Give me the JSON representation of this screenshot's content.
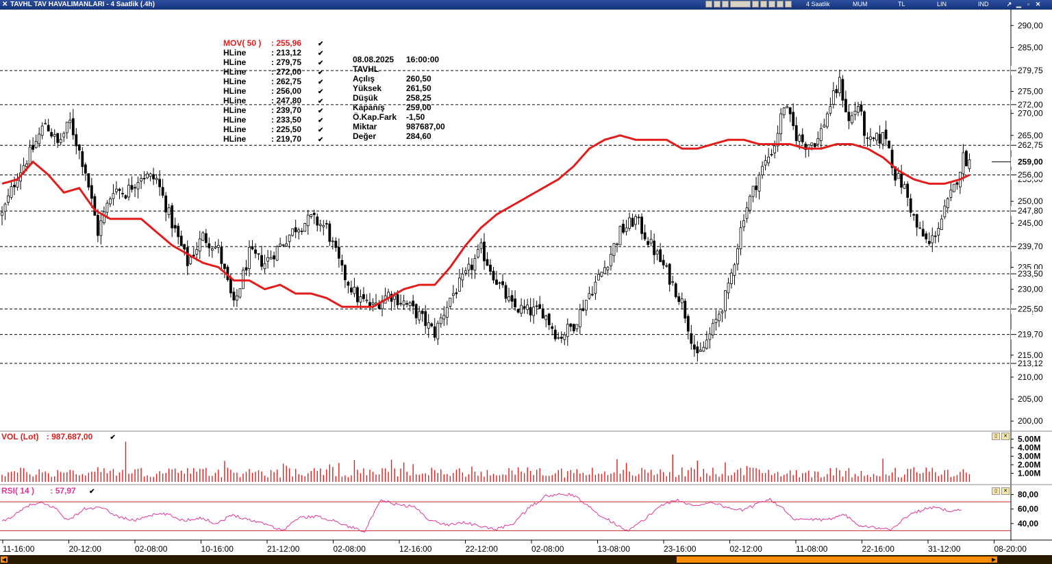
{
  "window": {
    "title": "TAVHL TAV HAVALIMANLARI - 4 Saatlik (.4h)",
    "toolbar_labels": [
      "4 Saatlik",
      "MUM",
      "TL",
      "LIN",
      "IND"
    ]
  },
  "legend": {
    "mov_label": "MOV( 50 )",
    "mov_value": ": 255,96",
    "hlines": [
      {
        "label": "HLine",
        "value": ": 213,12"
      },
      {
        "label": "HLine",
        "value": ": 279,75"
      },
      {
        "label": "HLine",
        "value": ": 272,00"
      },
      {
        "label": "HLine",
        "value": ": 262,75"
      },
      {
        "label": "HLine",
        "value": ": 256,00"
      },
      {
        "label": "HLine",
        "value": ": 247,80"
      },
      {
        "label": "HLine",
        "value": ": 239,70"
      },
      {
        "label": "HLine",
        "value": ": 233,50"
      },
      {
        "label": "HLine",
        "value": ": 225,50"
      },
      {
        "label": "HLine",
        "value": ": 219,70"
      }
    ]
  },
  "info": {
    "date": "08.08.2025",
    "time": "16:00:00",
    "symbol": "TAVHL",
    "rows": [
      {
        "k": "Açılış",
        "v": "260,50"
      },
      {
        "k": "Yüksek",
        "v": "261,50"
      },
      {
        "k": "Düşük",
        "v": "258,25"
      },
      {
        "k": "Kapanış",
        "v": "259,00"
      },
      {
        "k": "Ö.Kap.Fark",
        "v": "-1,50"
      },
      {
        "k": "Miktar",
        "v": "987687,00"
      },
      {
        "k": "Değer",
        "v": "284,60"
      }
    ]
  },
  "volume_panel": {
    "label": "VOL (Lot)",
    "value": ": 987.687,00"
  },
  "rsi_panel": {
    "label": "RSI( 14 )",
    "value": ": 57,97"
  },
  "colors": {
    "ma": "#e31b1b",
    "rsi": "#e0359a",
    "vol": "#e31b1b",
    "title_bg": "#1f3f8f",
    "scroll": "#ff8c00"
  },
  "chart_data": {
    "type": "candlestick",
    "price_axis": {
      "ylim": [
        198,
        293
      ],
      "ticks": [
        "200,00",
        "205,00",
        "210,00",
        "215,00",
        "225,00",
        "230,00",
        "235,00",
        "245,00",
        "250,00",
        "255,00",
        "265,00",
        "270,00",
        "275,00",
        "285,00",
        "290,00"
      ],
      "tick_values": [
        200,
        205,
        210,
        215,
        225,
        230,
        235,
        245,
        250,
        255,
        265,
        270,
        275,
        285,
        290
      ]
    },
    "hlines": [
      {
        "value": 279.75,
        "label": "279,75"
      },
      {
        "value": 272.0,
        "label": "272,00"
      },
      {
        "value": 262.75,
        "label": "262,75"
      },
      {
        "value": 256.0,
        "label": "256,00"
      },
      {
        "value": 247.8,
        "label": "247,80"
      },
      {
        "value": 239.7,
        "label": "239,70"
      },
      {
        "value": 233.5,
        "label": "233,50"
      },
      {
        "value": 225.5,
        "label": "225,50"
      },
      {
        "value": 219.7,
        "label": "219,70"
      },
      {
        "value": 213.12,
        "label": "213,12"
      }
    ],
    "last_price": {
      "value": 259.0,
      "label": "259,00"
    },
    "x_labels": [
      "11-16:00",
      "20-12:00",
      "02-08:00",
      "10-16:00",
      "21-12:00",
      "02-08:00",
      "12-16:00",
      "22-12:00",
      "02-08:00",
      "13-08:00",
      "23-16:00",
      "02-12:00",
      "11-08:00",
      "22-16:00",
      "31-12:00",
      "08-20:00"
    ],
    "close_path": [
      [
        0,
        247
      ],
      [
        5,
        256
      ],
      [
        10,
        262
      ],
      [
        14,
        268
      ],
      [
        18,
        263
      ],
      [
        22,
        268
      ],
      [
        27,
        257
      ],
      [
        31,
        243
      ],
      [
        36,
        253
      ],
      [
        40,
        252
      ],
      [
        45,
        256
      ],
      [
        50,
        255
      ],
      [
        55,
        245
      ],
      [
        60,
        236
      ],
      [
        65,
        242
      ],
      [
        70,
        239
      ],
      [
        75,
        226
      ],
      [
        80,
        238
      ],
      [
        85,
        236
      ],
      [
        90,
        240
      ],
      [
        95,
        244
      ],
      [
        100,
        246
      ],
      [
        105,
        244
      ],
      [
        110,
        234
      ],
      [
        115,
        228
      ],
      [
        120,
        226
      ],
      [
        125,
        229
      ],
      [
        130,
        227
      ],
      [
        135,
        224
      ],
      [
        140,
        220
      ],
      [
        145,
        228
      ],
      [
        150,
        233
      ],
      [
        155,
        239
      ],
      [
        160,
        232
      ],
      [
        165,
        226
      ],
      [
        170,
        225
      ],
      [
        175,
        225
      ],
      [
        180,
        219
      ],
      [
        185,
        222
      ],
      [
        190,
        229
      ],
      [
        195,
        235
      ],
      [
        200,
        243
      ],
      [
        205,
        246
      ],
      [
        210,
        240
      ],
      [
        215,
        234
      ],
      [
        220,
        227
      ],
      [
        225,
        214
      ],
      [
        230,
        221
      ],
      [
        235,
        230
      ],
      [
        240,
        247
      ],
      [
        245,
        256
      ],
      [
        250,
        263
      ],
      [
        253,
        272
      ],
      [
        257,
        265
      ],
      [
        260,
        263
      ],
      [
        264,
        264
      ],
      [
        268,
        272
      ],
      [
        271,
        277
      ],
      [
        274,
        268
      ],
      [
        277,
        272
      ],
      [
        280,
        263
      ],
      [
        283,
        264
      ],
      [
        286,
        265
      ],
      [
        289,
        256
      ],
      [
        292,
        253
      ],
      [
        296,
        244
      ],
      [
        300,
        240
      ],
      [
        304,
        246
      ],
      [
        308,
        253
      ],
      [
        311,
        260
      ],
      [
        313,
        259
      ]
    ],
    "ma_path": [
      [
        0,
        254
      ],
      [
        5,
        255
      ],
      [
        10,
        259
      ],
      [
        15,
        256
      ],
      [
        20,
        252
      ],
      [
        25,
        253
      ],
      [
        30,
        248
      ],
      [
        35,
        246
      ],
      [
        40,
        246
      ],
      [
        45,
        246
      ],
      [
        50,
        243
      ],
      [
        55,
        240
      ],
      [
        60,
        238
      ],
      [
        65,
        236
      ],
      [
        70,
        235
      ],
      [
        75,
        232
      ],
      [
        80,
        232
      ],
      [
        85,
        230
      ],
      [
        90,
        231
      ],
      [
        95,
        229
      ],
      [
        100,
        229
      ],
      [
        105,
        228
      ],
      [
        110,
        226
      ],
      [
        115,
        226
      ],
      [
        120,
        226
      ],
      [
        125,
        228
      ],
      [
        130,
        230
      ],
      [
        135,
        231
      ],
      [
        140,
        231
      ],
      [
        145,
        235
      ],
      [
        150,
        240
      ],
      [
        155,
        244
      ],
      [
        160,
        247
      ],
      [
        165,
        249
      ],
      [
        170,
        251
      ],
      [
        175,
        253
      ],
      [
        180,
        255
      ],
      [
        185,
        258
      ],
      [
        190,
        262
      ],
      [
        195,
        264
      ],
      [
        200,
        265
      ],
      [
        205,
        264
      ],
      [
        210,
        264
      ],
      [
        215,
        264
      ],
      [
        220,
        262
      ],
      [
        225,
        262
      ],
      [
        230,
        263
      ],
      [
        235,
        264
      ],
      [
        240,
        264
      ],
      [
        245,
        263
      ],
      [
        250,
        263
      ],
      [
        255,
        263
      ],
      [
        260,
        262
      ],
      [
        265,
        262
      ],
      [
        270,
        263
      ],
      [
        275,
        263
      ],
      [
        280,
        262
      ],
      [
        285,
        260
      ],
      [
        290,
        257
      ],
      [
        295,
        255
      ],
      [
        300,
        254
      ],
      [
        305,
        254
      ],
      [
        310,
        255
      ],
      [
        313,
        256
      ]
    ],
    "ma_value": 255.96,
    "volume_axis": {
      "ticks": [
        "1.00M",
        "2.00M",
        "3.00M",
        "4.00M",
        "5.00M"
      ],
      "tick_values": [
        1,
        2,
        3,
        4,
        5
      ]
    },
    "rsi_axis": {
      "ticks": [
        "40,00",
        "60,00",
        "80,00"
      ],
      "tick_values": [
        40,
        60,
        80
      ],
      "bands": [
        30,
        70
      ]
    },
    "rsi_path": [
      [
        0,
        42
      ],
      [
        5,
        55
      ],
      [
        8,
        65
      ],
      [
        12,
        68
      ],
      [
        16,
        62
      ],
      [
        20,
        44
      ],
      [
        25,
        60
      ],
      [
        30,
        62
      ],
      [
        35,
        50
      ],
      [
        40,
        44
      ],
      [
        45,
        52
      ],
      [
        50,
        53
      ],
      [
        55,
        44
      ],
      [
        60,
        48
      ],
      [
        65,
        40
      ],
      [
        70,
        52
      ],
      [
        75,
        45
      ],
      [
        80,
        40
      ],
      [
        85,
        30
      ],
      [
        90,
        48
      ],
      [
        95,
        50
      ],
      [
        100,
        45
      ],
      [
        105,
        36
      ],
      [
        110,
        30
      ],
      [
        115,
        72
      ],
      [
        120,
        66
      ],
      [
        125,
        63
      ],
      [
        130,
        44
      ],
      [
        135,
        38
      ],
      [
        140,
        42
      ],
      [
        145,
        36
      ],
      [
        150,
        32
      ],
      [
        155,
        40
      ],
      [
        160,
        62
      ],
      [
        165,
        78
      ],
      [
        170,
        80
      ],
      [
        173,
        80
      ],
      [
        176,
        70
      ],
      [
        180,
        56
      ],
      [
        185,
        42
      ],
      [
        190,
        30
      ],
      [
        195,
        46
      ],
      [
        200,
        66
      ],
      [
        205,
        72
      ],
      [
        210,
        64
      ],
      [
        215,
        70
      ],
      [
        220,
        62
      ],
      [
        225,
        58
      ],
      [
        230,
        70
      ],
      [
        233,
        74
      ],
      [
        237,
        60
      ],
      [
        240,
        45
      ],
      [
        245,
        46
      ],
      [
        250,
        44
      ],
      [
        255,
        54
      ],
      [
        260,
        38
      ],
      [
        265,
        34
      ],
      [
        270,
        32
      ],
      [
        275,
        52
      ],
      [
        280,
        60
      ],
      [
        283,
        62
      ],
      [
        287,
        58
      ],
      [
        291,
        58
      ]
    ]
  }
}
